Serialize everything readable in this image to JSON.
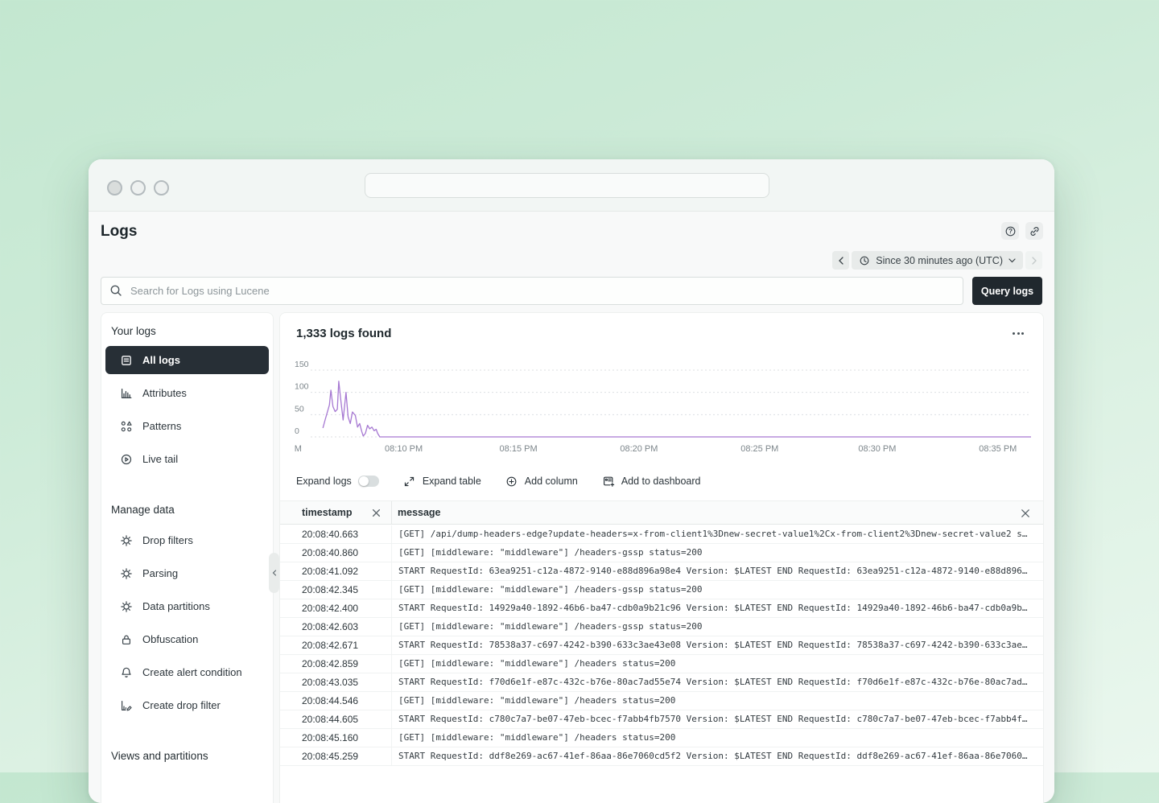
{
  "header": {
    "title": "Logs",
    "time_range": {
      "label": "Since 30 minutes ago (UTC)"
    }
  },
  "search": {
    "placeholder": "Search for Logs using Lucene",
    "query_button": "Query logs"
  },
  "sidebar": {
    "sections": [
      {
        "heading": "Your logs",
        "items": [
          {
            "label": "All logs",
            "icon": "log-list-icon",
            "selected": true
          },
          {
            "label": "Attributes",
            "icon": "bar-chart-icon",
            "selected": false
          },
          {
            "label": "Patterns",
            "icon": "shapes-icon",
            "selected": false
          },
          {
            "label": "Live tail",
            "icon": "play-circle-icon",
            "selected": false
          }
        ]
      },
      {
        "heading": "Manage data",
        "items": [
          {
            "label": "Drop filters",
            "icon": "gear-icon",
            "selected": false
          },
          {
            "label": "Parsing",
            "icon": "gear-icon",
            "selected": false
          },
          {
            "label": "Data partitions",
            "icon": "gear-icon",
            "selected": false
          },
          {
            "label": "Obfuscation",
            "icon": "lock-icon",
            "selected": false
          },
          {
            "label": "Create alert condition",
            "icon": "bell-icon",
            "selected": false
          },
          {
            "label": "Create drop filter",
            "icon": "chart-pencil-icon",
            "selected": false
          }
        ]
      },
      {
        "heading": "Views and partitions",
        "items": []
      }
    ]
  },
  "main": {
    "results_count": "1,333 logs found",
    "toolbar": {
      "expand_logs": "Expand logs",
      "expand_logs_on": false,
      "expand_table": "Expand table",
      "add_column": "Add column",
      "add_to_dashboard": "Add to dashboard"
    },
    "table": {
      "columns": [
        "timestamp",
        "message"
      ],
      "rows": [
        {
          "timestamp": "20:08:40.663",
          "message": "[GET] /api/dump-headers-edge?update-headers=x-from-client1%3Dnew-secret-value1%2Cx-from-client2%3Dnew-secret-value2 s…"
        },
        {
          "timestamp": "20:08:40.860",
          "message": "[GET] [middleware: \"middleware\"] /headers-gssp status=200"
        },
        {
          "timestamp": "20:08:41.092",
          "message": "START RequestId: 63ea9251-c12a-4872-9140-e88d896a98e4 Version: $LATEST END RequestId: 63ea9251-c12a-4872-9140-e88d896…"
        },
        {
          "timestamp": "20:08:42.345",
          "message": "[GET] [middleware: \"middleware\"] /headers-gssp status=200"
        },
        {
          "timestamp": "20:08:42.400",
          "message": "START RequestId: 14929a40-1892-46b6-ba47-cdb0a9b21c96 Version: $LATEST END RequestId: 14929a40-1892-46b6-ba47-cdb0a9b…"
        },
        {
          "timestamp": "20:08:42.603",
          "message": "[GET] [middleware: \"middleware\"] /headers-gssp status=200"
        },
        {
          "timestamp": "20:08:42.671",
          "message": "START RequestId: 78538a37-c697-4242-b390-633c3ae43e08 Version: $LATEST END RequestId: 78538a37-c697-4242-b390-633c3ae…"
        },
        {
          "timestamp": "20:08:42.859",
          "message": "[GET] [middleware: \"middleware\"] /headers status=200"
        },
        {
          "timestamp": "20:08:43.035",
          "message": "START RequestId: f70d6e1f-e87c-432c-b76e-80ac7ad55e74 Version: $LATEST END RequestId: f70d6e1f-e87c-432c-b76e-80ac7ad…"
        },
        {
          "timestamp": "20:08:44.546",
          "message": "[GET] [middleware: \"middleware\"] /headers status=200"
        },
        {
          "timestamp": "20:08:44.605",
          "message": "START RequestId: c780c7a7-be07-47eb-bcec-f7abb4fb7570 Version: $LATEST END RequestId: c780c7a7-be07-47eb-bcec-f7abb4f…"
        },
        {
          "timestamp": "20:08:45.160",
          "message": "[GET] [middleware: \"middleware\"] /headers status=200"
        },
        {
          "timestamp": "20:08:45.259",
          "message": "START RequestId: ddf8e269-ac67-41ef-86aa-86e7060cd5f2 Version: $LATEST END RequestId: ddf8e269-ac67-41ef-86aa-86e7060…"
        }
      ]
    }
  },
  "chart_data": {
    "type": "line",
    "title": "1,333 logs found",
    "xlabel": "",
    "ylabel": "",
    "ylim": [
      0,
      150
    ],
    "yticks": [
      150,
      100,
      50,
      0
    ],
    "grid": "dotted-horizontal",
    "legend": "none",
    "line_color": "#a678d2",
    "xticks": [
      {
        "label": "M",
        "f": 0.01
      },
      {
        "label": "08:10 PM",
        "f": 0.152
      },
      {
        "label": "08:15 PM",
        "f": 0.306
      },
      {
        "label": "08:20 PM",
        "f": 0.468
      },
      {
        "label": "08:25 PM",
        "f": 0.63
      },
      {
        "label": "08:30 PM",
        "f": 0.788
      },
      {
        "label": "08:35 PM",
        "f": 0.95
      }
    ],
    "points": [
      [
        0.017,
        20
      ],
      [
        0.02,
        38
      ],
      [
        0.023,
        55
      ],
      [
        0.026,
        72
      ],
      [
        0.028,
        105
      ],
      [
        0.031,
        68
      ],
      [
        0.034,
        57
      ],
      [
        0.037,
        62
      ],
      [
        0.039,
        125
      ],
      [
        0.042,
        80
      ],
      [
        0.045,
        38
      ],
      [
        0.049,
        100
      ],
      [
        0.052,
        45
      ],
      [
        0.055,
        30
      ],
      [
        0.058,
        56
      ],
      [
        0.062,
        48
      ],
      [
        0.065,
        22
      ],
      [
        0.068,
        30
      ],
      [
        0.071,
        12
      ],
      [
        0.073,
        2
      ],
      [
        0.076,
        8
      ],
      [
        0.079,
        26
      ],
      [
        0.082,
        18
      ],
      [
        0.085,
        22
      ],
      [
        0.088,
        14
      ],
      [
        0.091,
        17
      ],
      [
        0.093,
        8
      ],
      [
        0.096,
        0
      ],
      [
        1,
        0
      ]
    ]
  },
  "icons": [
    "search-icon",
    "clock-icon",
    "chevron-left-icon",
    "chevron-right-icon",
    "chevron-down-icon",
    "help-icon",
    "link-icon",
    "log-list-icon",
    "bar-chart-icon",
    "shapes-icon",
    "play-circle-icon",
    "gear-icon",
    "lock-icon",
    "bell-icon",
    "chart-pencil-icon",
    "expand-icon",
    "plus-circle-icon",
    "dashboard-icon",
    "close-icon",
    "ellipsis-icon"
  ],
  "colors": {
    "background_top": "#c3e7d0",
    "background_bottom": "#eaf7ee",
    "accent_line": "#a678d2",
    "selected_item_bg": "#272f36",
    "query_button_bg": "#20282e",
    "panel_bg": "#ffffff",
    "chip_bg": "#e8ebea"
  }
}
